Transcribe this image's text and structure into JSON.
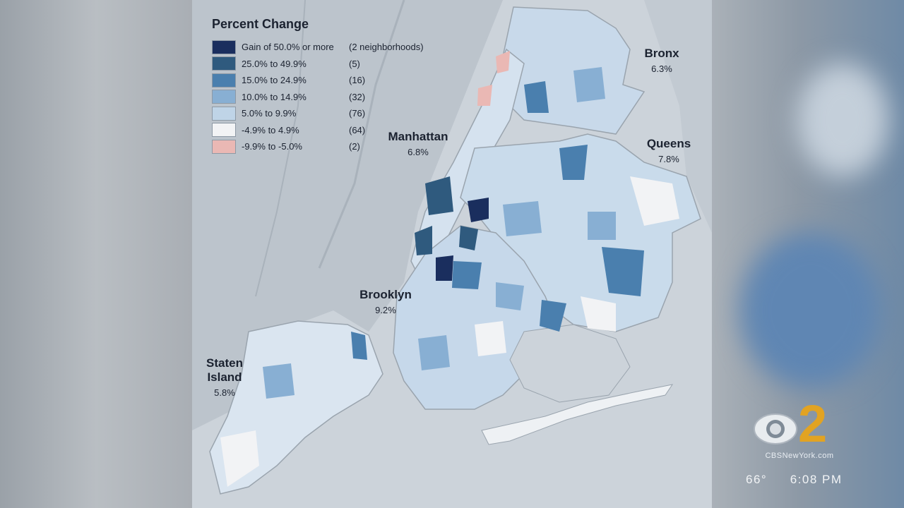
{
  "legend": {
    "title": "Percent Change",
    "items": [
      {
        "label": "Gain of 50.0% or more",
        "count": "(2 neighborhoods)",
        "color": "#1a2e5e"
      },
      {
        "label": "25.0% to 49.9%",
        "count": "(5)",
        "color": "#2f5a7e"
      },
      {
        "label": "15.0% to 24.9%",
        "count": "(16)",
        "color": "#4a7fae"
      },
      {
        "label": "10.0% to 14.9%",
        "count": "(32)",
        "color": "#88afd3"
      },
      {
        "label": "5.0% to 9.9%",
        "count": "(76)",
        "color": "#bfd4e7"
      },
      {
        "label": "-4.9% to 4.9%",
        "count": "(64)",
        "color": "#f2f3f5"
      },
      {
        "label": "-9.9% to -5.0%",
        "count": "(2)",
        "color": "#eab8b4"
      }
    ]
  },
  "boroughs": {
    "manhattan": {
      "name": "Manhattan",
      "value": "6.8%"
    },
    "bronx": {
      "name": "Bronx",
      "value": "6.3%"
    },
    "queens": {
      "name": "Queens",
      "value": "7.8%"
    },
    "brooklyn": {
      "name": "Brooklyn",
      "value": "9.2%"
    },
    "staten_island": {
      "name_line1": "Staten",
      "name_line2": "Island",
      "value": "5.8%"
    }
  },
  "broadcast": {
    "channel_number": "2",
    "website": "CBSNewYork.com",
    "temperature": "66°",
    "time": "6:08 PM"
  }
}
